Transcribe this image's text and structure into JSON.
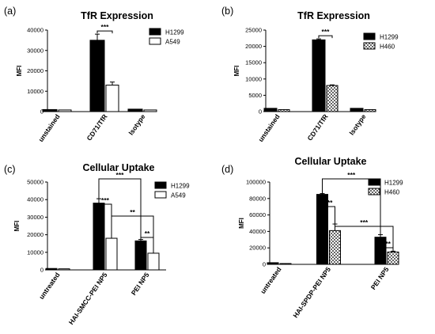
{
  "chart_data": [
    {
      "type": "bar",
      "panel_label": "(a)",
      "title": "TfR Expression",
      "ylabel": "MFI",
      "xlabel": "",
      "categories": [
        "unstained",
        "CD71/TfR",
        "Isotype"
      ],
      "ylim": [
        0,
        40000
      ],
      "yticks": [
        "0",
        "10000",
        "20000",
        "30000",
        "40000"
      ],
      "series": [
        {
          "name": "H1299",
          "values": [
            1000,
            35000,
            1200
          ],
          "errors": [
            0,
            3000,
            0
          ],
          "fill": "solid",
          "color": "#000000"
        },
        {
          "name": "A549",
          "values": [
            800,
            13000,
            800
          ],
          "errors": [
            0,
            1500,
            0
          ],
          "fill": "open",
          "color": "#ffffff"
        }
      ],
      "significance": [
        {
          "category": 1,
          "series": [
            0,
            1
          ],
          "label": "***"
        }
      ],
      "legend_position": "top-right"
    },
    {
      "type": "bar",
      "panel_label": "(b)",
      "title": "TfR Expression",
      "ylabel": "MFI",
      "xlabel": "",
      "categories": [
        "unstained",
        "CD71/TfR",
        "Isotype"
      ],
      "ylim": [
        0,
        25000
      ],
      "yticks": [
        "0",
        "5000",
        "10000",
        "15000",
        "20000",
        "25000"
      ],
      "series": [
        {
          "name": "H1299",
          "values": [
            1000,
            22000,
            1000
          ],
          "errors": [
            0,
            300,
            0
          ],
          "fill": "solid",
          "color": "#000000"
        },
        {
          "name": "H460",
          "values": [
            600,
            8000,
            600
          ],
          "errors": [
            0,
            200,
            0
          ],
          "fill": "checkered",
          "color": "#999999"
        }
      ],
      "significance": [
        {
          "category": 1,
          "series": [
            0,
            1
          ],
          "label": "***"
        }
      ],
      "legend_position": "top-right"
    },
    {
      "type": "bar",
      "panel_label": "(c)",
      "title": "Cellular Uptake",
      "ylabel": "MFI",
      "xlabel": "",
      "categories": [
        "untreated",
        "HAI-SMCC-PEI NP5",
        "PEI NP5"
      ],
      "ylim": [
        0,
        50000
      ],
      "yticks": [
        "0",
        "10000",
        "20000",
        "30000",
        "40000",
        "50000"
      ],
      "series": [
        {
          "name": "H1299",
          "values": [
            800,
            38000,
            16500
          ],
          "errors": [
            0,
            2500,
            800
          ],
          "fill": "solid",
          "color": "#000000"
        },
        {
          "name": "A549",
          "values": [
            600,
            18000,
            9500
          ],
          "errors": [
            0,
            0,
            0
          ],
          "fill": "open",
          "color": "#ffffff"
        }
      ],
      "significance": [
        {
          "from": [
            1,
            0
          ],
          "to": [
            1,
            1
          ],
          "label": "***"
        },
        {
          "from": [
            1,
            0
          ],
          "to": [
            2,
            0
          ],
          "label": "***"
        },
        {
          "from": [
            1,
            1
          ],
          "to": [
            2,
            1
          ],
          "label": "**"
        },
        {
          "from": [
            2,
            0
          ],
          "to": [
            2,
            1
          ],
          "label": "**"
        }
      ],
      "legend_position": "top-right"
    },
    {
      "type": "bar",
      "panel_label": "(d)",
      "title": "Cellular Uptake",
      "ylabel": "MFI",
      "xlabel": "",
      "categories": [
        "untreated",
        "HAI-SPDP-PEI NP5",
        "PEI NP5"
      ],
      "ylim": [
        0,
        100000
      ],
      "yticks": [
        "0",
        "20000",
        "40000",
        "60000",
        "80000",
        "100000"
      ],
      "series": [
        {
          "name": "H1299",
          "values": [
            2000,
            85000,
            33000
          ],
          "errors": [
            0,
            1000,
            3000
          ],
          "fill": "solid",
          "color": "#000000"
        },
        {
          "name": "H460",
          "values": [
            1000,
            41000,
            15000
          ],
          "errors": [
            0,
            8000,
            1000
          ],
          "fill": "checkered",
          "color": "#999999"
        }
      ],
      "significance": [
        {
          "from": [
            1,
            0
          ],
          "to": [
            1,
            1
          ],
          "label": "***"
        },
        {
          "from": [
            1,
            0
          ],
          "to": [
            2,
            0
          ],
          "label": "***"
        },
        {
          "from": [
            1,
            1
          ],
          "to": [
            2,
            1
          ],
          "label": "***"
        },
        {
          "from": [
            2,
            0
          ],
          "to": [
            2,
            1
          ],
          "label": "***"
        }
      ],
      "legend_position": "top-right"
    }
  ]
}
